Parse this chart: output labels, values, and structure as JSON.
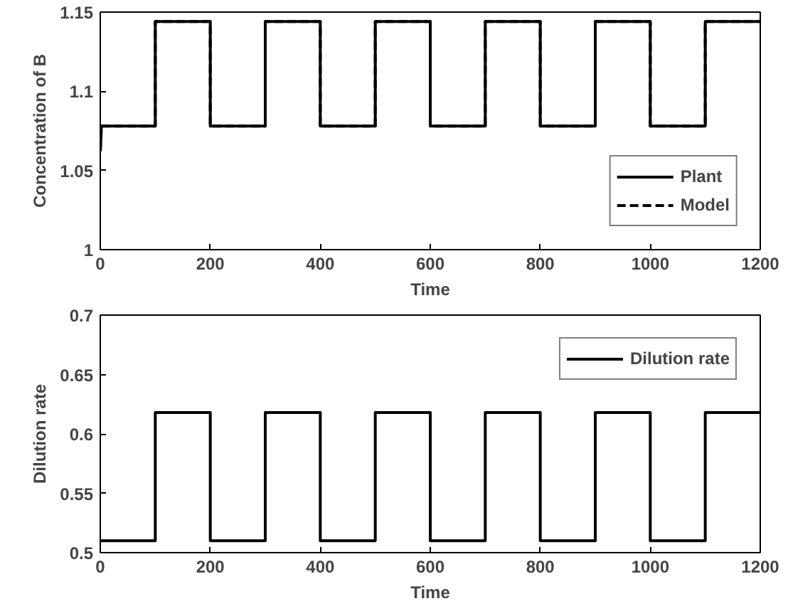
{
  "chart_data": [
    {
      "type": "line",
      "xlabel": "Time",
      "ylabel": "Concentration of B",
      "xlim": [
        0,
        1200
      ],
      "ylim": [
        1,
        1.15
      ],
      "xticks": [
        0,
        200,
        400,
        600,
        800,
        1000,
        1200
      ],
      "yticks": [
        1,
        1.05,
        1.1,
        1.15
      ],
      "grid": false,
      "legend": "bottom right",
      "series": [
        {
          "name": "Plant",
          "color": "#000000",
          "line_style": "solid",
          "x": [
            0,
            2,
            100,
            100,
            200,
            200,
            300,
            300,
            400,
            400,
            500,
            500,
            600,
            600,
            700,
            700,
            800,
            800,
            900,
            900,
            1000,
            1000,
            1100,
            1100,
            1200
          ],
          "values": [
            1.062,
            1.078,
            1.078,
            1.144,
            1.144,
            1.078,
            1.078,
            1.144,
            1.144,
            1.078,
            1.078,
            1.144,
            1.144,
            1.078,
            1.078,
            1.144,
            1.144,
            1.078,
            1.078,
            1.144,
            1.144,
            1.078,
            1.078,
            1.144,
            1.144
          ]
        },
        {
          "name": "Model",
          "color": "#000000",
          "line_style": "dashed",
          "x": [
            0,
            2,
            100,
            100,
            200,
            200,
            300,
            300,
            400,
            400,
            500,
            500,
            600,
            600,
            700,
            700,
            800,
            800,
            900,
            900,
            1000,
            1000,
            1100,
            1100,
            1200
          ],
          "values": [
            1.062,
            1.078,
            1.078,
            1.144,
            1.144,
            1.078,
            1.078,
            1.144,
            1.144,
            1.078,
            1.078,
            1.144,
            1.144,
            1.078,
            1.078,
            1.144,
            1.144,
            1.078,
            1.078,
            1.144,
            1.144,
            1.078,
            1.078,
            1.144,
            1.144
          ]
        }
      ]
    },
    {
      "type": "line",
      "xlabel": "Time",
      "ylabel": "Dilution rate",
      "xlim": [
        0,
        1200
      ],
      "ylim": [
        0.5,
        0.7
      ],
      "xticks": [
        0,
        200,
        400,
        600,
        800,
        1000,
        1200
      ],
      "yticks": [
        0.5,
        0.55,
        0.6,
        0.65,
        0.7
      ],
      "grid": false,
      "legend": "top right",
      "series": [
        {
          "name": "Dilution rate",
          "color": "#000000",
          "line_style": "solid",
          "x": [
            0,
            100,
            100,
            200,
            200,
            300,
            300,
            400,
            400,
            500,
            500,
            600,
            600,
            700,
            700,
            800,
            800,
            900,
            900,
            1000,
            1000,
            1100,
            1100,
            1200
          ],
          "values": [
            0.51,
            0.51,
            0.618,
            0.618,
            0.51,
            0.51,
            0.618,
            0.618,
            0.51,
            0.51,
            0.618,
            0.618,
            0.51,
            0.51,
            0.618,
            0.618,
            0.51,
            0.51,
            0.618,
            0.618,
            0.51,
            0.51,
            0.618,
            0.618
          ]
        }
      ]
    }
  ]
}
